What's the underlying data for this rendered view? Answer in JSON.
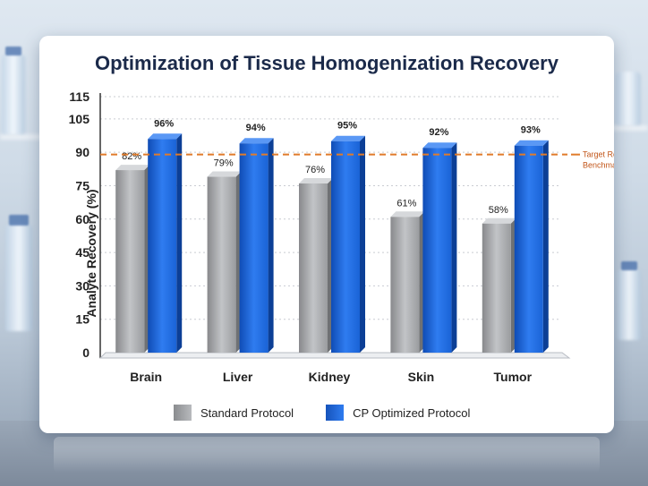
{
  "chart_data": {
    "type": "bar",
    "title": "Optimization of Tissue Homogenization Recovery",
    "xlabel": "",
    "ylabel": "Analyte Recovery (%)",
    "ylim": [
      0,
      115
    ],
    "yticks": [
      0,
      15,
      30,
      45,
      60,
      75,
      90,
      105,
      115
    ],
    "categories": [
      "Brain",
      "Liver",
      "Kidney",
      "Skin",
      "Tumor"
    ],
    "series": [
      {
        "name": "Standard Protocol",
        "values": [
          82,
          79,
          76,
          61,
          58
        ],
        "labels": [
          "82%",
          "79%",
          "76%",
          "61%",
          "58%"
        ],
        "color": "#9a9c9f"
      },
      {
        "name": "CP Optimized Protocol",
        "values": [
          96,
          94,
          95,
          92,
          93
        ],
        "labels": [
          "96%",
          "94%",
          "95%",
          "92%",
          "93%"
        ],
        "color": "#1a63d6"
      }
    ],
    "reference_line": {
      "value": 89,
      "label": [
        "Target Recovery",
        "Benchmark"
      ],
      "color": "#e07b2a",
      "style": "dashed"
    },
    "grid": "horizontal-dotted",
    "legend_position": "bottom"
  }
}
